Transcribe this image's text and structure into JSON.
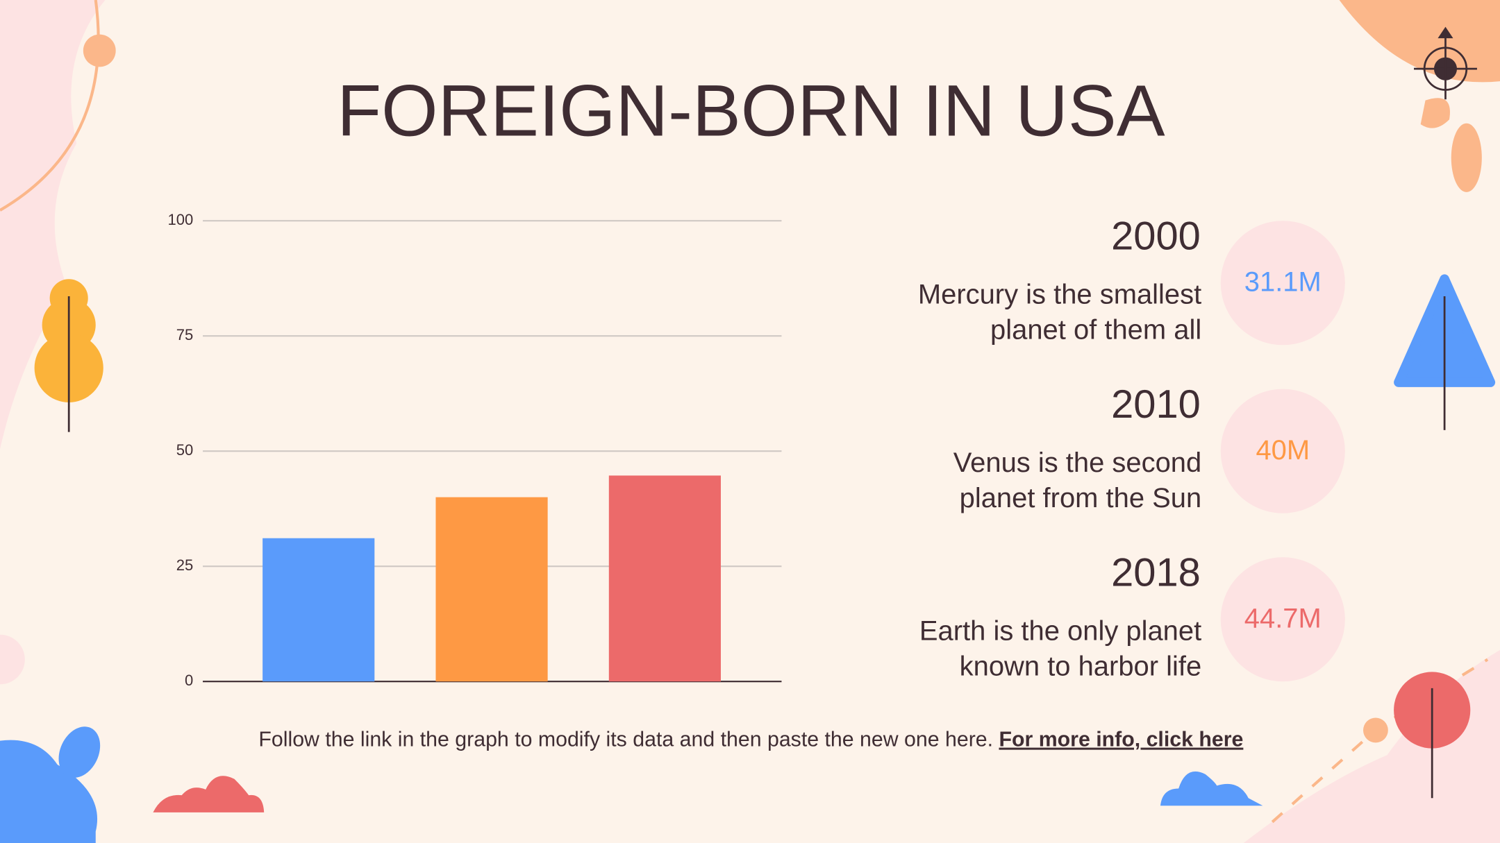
{
  "chart_data": {
    "type": "bar",
    "title": "FOREIGN-BORN IN USA",
    "categories": [
      null,
      null,
      null
    ],
    "values": [
      31.1,
      40,
      44.7
    ],
    "value_labels": [
      "31.1M",
      "40M",
      "44.7M"
    ],
    "colors": [
      "#5a9bfb",
      "#fe9944",
      "#ec6a6a"
    ],
    "ylim": [
      0,
      100
    ],
    "yticks": [
      0,
      25,
      50,
      75,
      100
    ],
    "grid": true
  },
  "panel": {
    "items": [
      {
        "year": "2000",
        "lines": [
          "Mercury is the smallest",
          "planet of them all"
        ]
      },
      {
        "year": "2010",
        "lines": [
          "Venus is the second",
          "planet from the Sun"
        ]
      },
      {
        "year": "2018",
        "lines": [
          "Earth is the only planet",
          "known to harbor life"
        ]
      }
    ]
  },
  "footer": {
    "text": "Follow the link in the graph to modify its data and then paste the new one here.",
    "link": "For more info, click here"
  }
}
